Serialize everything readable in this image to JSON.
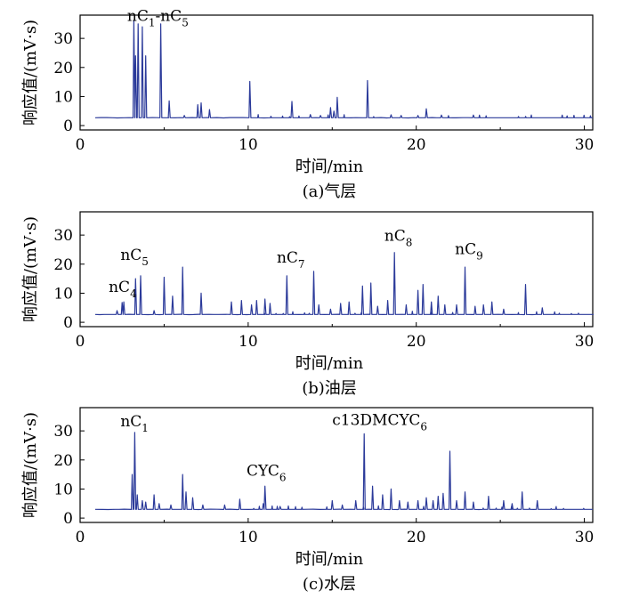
{
  "chart_data": [
    {
      "type": "line",
      "caption": "(a)气层",
      "xlabel": "时间/min",
      "ylabel": "响应值/(mV·s)",
      "xlim": [
        0,
        30.5
      ],
      "ylim": [
        -1.5,
        38
      ],
      "xticks": [
        0,
        10,
        20,
        30
      ],
      "yticks": [
        0,
        10,
        20,
        30
      ],
      "baseline": 2.7,
      "color": "#2b3a9a",
      "peaks": [
        {
          "x": 3.2,
          "y": 36
        },
        {
          "x": 3.3,
          "y": 24
        },
        {
          "x": 3.45,
          "y": 35
        },
        {
          "x": 3.7,
          "y": 34
        },
        {
          "x": 3.9,
          "y": 24
        },
        {
          "x": 4.8,
          "y": 35
        },
        {
          "x": 5.3,
          "y": 8.5
        },
        {
          "x": 6.2,
          "y": 3.5
        },
        {
          "x": 7.0,
          "y": 7.2
        },
        {
          "x": 7.2,
          "y": 7.8
        },
        {
          "x": 7.7,
          "y": 5.5
        },
        {
          "x": 10.1,
          "y": 15.2
        },
        {
          "x": 12.6,
          "y": 8.3
        },
        {
          "x": 13.7,
          "y": 3.8
        },
        {
          "x": 14.3,
          "y": 3.5
        },
        {
          "x": 14.9,
          "y": 6.2
        },
        {
          "x": 15.1,
          "y": 5.0
        },
        {
          "x": 15.3,
          "y": 9.7
        },
        {
          "x": 17.1,
          "y": 15.5
        },
        {
          "x": 18.5,
          "y": 3.7
        },
        {
          "x": 19.1,
          "y": 3.5
        },
        {
          "x": 20.1,
          "y": 3.5
        },
        {
          "x": 20.6,
          "y": 5.8
        },
        {
          "x": 21.5,
          "y": 3.6
        },
        {
          "x": 23.4,
          "y": 3.6
        }
      ],
      "annotations": [
        {
          "text": "nC",
          "sub": "1",
          "mid": "-nC",
          "sub2": "5",
          "x": 2.8,
          "y": 36
        }
      ]
    },
    {
      "type": "line",
      "caption": "(b)油层",
      "xlabel": "时间/min",
      "ylabel": "响应值/(mV·s)",
      "xlim": [
        0,
        30.5
      ],
      "ylim": [
        -1.5,
        38
      ],
      "xticks": [
        0,
        10,
        20,
        30
      ],
      "yticks": [
        0,
        10,
        20,
        30
      ],
      "baseline": 2.7,
      "color": "#2b3a9a",
      "peaks": [
        {
          "x": 2.2,
          "y": 4.0
        },
        {
          "x": 2.5,
          "y": 6.8
        },
        {
          "x": 2.6,
          "y": 7.0
        },
        {
          "x": 3.3,
          "y": 15.0
        },
        {
          "x": 3.6,
          "y": 16.0
        },
        {
          "x": 4.4,
          "y": 4.0
        },
        {
          "x": 5.0,
          "y": 15.5
        },
        {
          "x": 5.5,
          "y": 9.0
        },
        {
          "x": 6.1,
          "y": 19.0
        },
        {
          "x": 7.2,
          "y": 10.0
        },
        {
          "x": 9.0,
          "y": 7.0
        },
        {
          "x": 9.6,
          "y": 7.5
        },
        {
          "x": 10.2,
          "y": 6.0
        },
        {
          "x": 10.5,
          "y": 7.5
        },
        {
          "x": 11.0,
          "y": 8.0
        },
        {
          "x": 11.3,
          "y": 6.5
        },
        {
          "x": 12.3,
          "y": 16.0
        },
        {
          "x": 13.9,
          "y": 17.5
        },
        {
          "x": 14.2,
          "y": 6.0
        },
        {
          "x": 14.9,
          "y": 4.5
        },
        {
          "x": 15.5,
          "y": 6.5
        },
        {
          "x": 16.0,
          "y": 7.0
        },
        {
          "x": 16.8,
          "y": 12.5
        },
        {
          "x": 17.3,
          "y": 13.5
        },
        {
          "x": 17.7,
          "y": 5.5
        },
        {
          "x": 18.3,
          "y": 7.5
        },
        {
          "x": 18.7,
          "y": 24.0
        },
        {
          "x": 19.4,
          "y": 6.0
        },
        {
          "x": 20.1,
          "y": 11.0
        },
        {
          "x": 20.4,
          "y": 13.0
        },
        {
          "x": 20.9,
          "y": 7.0
        },
        {
          "x": 21.3,
          "y": 9.0
        },
        {
          "x": 21.7,
          "y": 6.0
        },
        {
          "x": 22.4,
          "y": 6.0
        },
        {
          "x": 22.9,
          "y": 19.0
        },
        {
          "x": 23.5,
          "y": 5.5
        },
        {
          "x": 24.0,
          "y": 6.0
        },
        {
          "x": 24.5,
          "y": 7.0
        },
        {
          "x": 25.2,
          "y": 4.5
        },
        {
          "x": 26.5,
          "y": 13.0
        },
        {
          "x": 27.5,
          "y": 5.0
        }
      ],
      "annotations": [
        {
          "text": "nC",
          "sub": "4",
          "x": 1.7,
          "y": 10.5
        },
        {
          "text": "nC",
          "sub": "5",
          "x": 2.4,
          "y": 21.5
        },
        {
          "text": "nC",
          "sub": "7",
          "x": 11.7,
          "y": 20.5
        },
        {
          "text": "nC",
          "sub": "8",
          "x": 18.1,
          "y": 28.0
        },
        {
          "text": "nC",
          "sub": "9",
          "x": 22.3,
          "y": 23.5
        }
      ]
    },
    {
      "type": "line",
      "caption": "(c)水层",
      "xlabel": "时间/min",
      "ylabel": "响应值/(mV·s)",
      "xlim": [
        0,
        30.5
      ],
      "ylim": [
        -1.5,
        38
      ],
      "xticks": [
        0,
        10,
        20,
        30
      ],
      "yticks": [
        0,
        10,
        20,
        30
      ],
      "baseline": 3.0,
      "color": "#2b3a9a",
      "peaks": [
        {
          "x": 3.1,
          "y": 15.0
        },
        {
          "x": 3.25,
          "y": 29.5
        },
        {
          "x": 3.4,
          "y": 8.0
        },
        {
          "x": 3.7,
          "y": 6.0
        },
        {
          "x": 3.9,
          "y": 5.5
        },
        {
          "x": 4.4,
          "y": 8.0
        },
        {
          "x": 4.7,
          "y": 5.0
        },
        {
          "x": 5.4,
          "y": 4.5
        },
        {
          "x": 6.1,
          "y": 15.0
        },
        {
          "x": 6.3,
          "y": 9.0
        },
        {
          "x": 6.7,
          "y": 7.0
        },
        {
          "x": 7.3,
          "y": 4.5
        },
        {
          "x": 8.6,
          "y": 4.5
        },
        {
          "x": 9.5,
          "y": 6.5
        },
        {
          "x": 10.9,
          "y": 5.0
        },
        {
          "x": 11.0,
          "y": 11.0
        },
        {
          "x": 11.9,
          "y": 4.0
        },
        {
          "x": 15.0,
          "y": 6.0
        },
        {
          "x": 15.6,
          "y": 4.5
        },
        {
          "x": 16.4,
          "y": 6.0
        },
        {
          "x": 16.9,
          "y": 29.0
        },
        {
          "x": 17.4,
          "y": 11.0
        },
        {
          "x": 18.0,
          "y": 8.0
        },
        {
          "x": 18.5,
          "y": 10.0
        },
        {
          "x": 19.0,
          "y": 6.0
        },
        {
          "x": 19.5,
          "y": 5.5
        },
        {
          "x": 20.1,
          "y": 6.0
        },
        {
          "x": 20.6,
          "y": 7.0
        },
        {
          "x": 21.0,
          "y": 6.0
        },
        {
          "x": 21.3,
          "y": 7.5
        },
        {
          "x": 21.6,
          "y": 8.5
        },
        {
          "x": 22.0,
          "y": 23.0
        },
        {
          "x": 22.4,
          "y": 6.0
        },
        {
          "x": 22.9,
          "y": 9.0
        },
        {
          "x": 23.4,
          "y": 5.5
        },
        {
          "x": 24.3,
          "y": 7.5
        },
        {
          "x": 25.2,
          "y": 6.0
        },
        {
          "x": 25.7,
          "y": 5.0
        },
        {
          "x": 26.3,
          "y": 9.0
        },
        {
          "x": 27.2,
          "y": 6.0
        }
      ],
      "annotations": [
        {
          "text": "nC",
          "sub": "1",
          "x": 2.4,
          "y": 31.5
        },
        {
          "text": "CYC",
          "sub": "6",
          "x": 9.9,
          "y": 14.5
        },
        {
          "text": "c13DMCYC",
          "sub": "6",
          "x": 15.0,
          "y": 32.0
        }
      ]
    }
  ]
}
